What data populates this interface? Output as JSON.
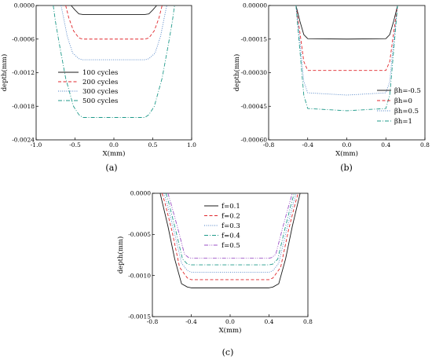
{
  "chart_data": [
    {
      "type": "line",
      "panel_label": "(a)",
      "xlabel": "X(mm)",
      "ylabel": "depth(mm)",
      "xlim": [
        -1.0,
        1.0
      ],
      "ylim": [
        -0.0024,
        0.0
      ],
      "x_ticks": [
        "-1.0",
        "-0.5",
        "0.0",
        "0.5",
        "1.0"
      ],
      "y_ticks": [
        "0.0000",
        "-0.0006",
        "-0.0012",
        "-0.0018",
        "-0.0024"
      ],
      "legend_position": "center",
      "grid": false,
      "series": [
        {
          "name": "100 cycles",
          "color": "#1a1a1a",
          "dash": "solid",
          "x": [
            -0.55,
            -0.5,
            -0.45,
            -0.4,
            0.0,
            0.4,
            0.45,
            0.5,
            0.55
          ],
          "y": [
            0.0,
            -8e-05,
            -0.00015,
            -0.00016,
            -0.00016,
            -0.00016,
            -0.00015,
            -8e-05,
            0.0
          ]
        },
        {
          "name": "200 cycles",
          "color": "#e0262b",
          "dash": "dashed",
          "x": [
            -0.62,
            -0.58,
            -0.52,
            -0.45,
            -0.4,
            0.0,
            0.4,
            0.45,
            0.52,
            0.58,
            0.62
          ],
          "y": [
            0.0,
            -0.00022,
            -0.00045,
            -0.00058,
            -0.0006,
            -0.0006,
            -0.0006,
            -0.00058,
            -0.00045,
            -0.00022,
            0.0
          ]
        },
        {
          "name": "300 cycles",
          "color": "#4a7fc4",
          "dash": "dotted",
          "x": [
            -0.68,
            -0.65,
            -0.6,
            -0.53,
            -0.45,
            -0.4,
            0.0,
            0.4,
            0.45,
            0.53,
            0.6,
            0.65,
            0.68
          ],
          "y": [
            0.0,
            -0.0002,
            -0.00055,
            -0.00085,
            -0.00095,
            -0.00097,
            -0.00097,
            -0.00097,
            -0.00095,
            -0.00085,
            -0.00055,
            -0.0002,
            0.0
          ]
        },
        {
          "name": "500 cycles",
          "color": "#1f9a8a",
          "dash": "dashdot",
          "x": [
            -0.78,
            -0.75,
            -0.7,
            -0.62,
            -0.52,
            -0.45,
            -0.4,
            0.0,
            0.4,
            0.45,
            0.52,
            0.62,
            0.7,
            0.75,
            0.78
          ],
          "y": [
            0.0,
            -0.0003,
            -0.0007,
            -0.0013,
            -0.0018,
            -0.00195,
            -0.002,
            -0.002,
            -0.002,
            -0.00195,
            -0.0018,
            -0.0013,
            -0.0007,
            -0.0003,
            0.0
          ]
        }
      ]
    },
    {
      "type": "line",
      "panel_label": "(b)",
      "xlabel": "X(mm)",
      "ylabel": "depth(mm)",
      "xlim": [
        -0.8,
        0.8
      ],
      "ylim": [
        -0.0006,
        0.0
      ],
      "x_ticks": [
        "-0.8",
        "-0.4",
        "0.0",
        "0.4",
        "0.8"
      ],
      "y_ticks": [
        "0.00000",
        "-0.00015",
        "-0.00030",
        "-0.00045",
        "-0.00060"
      ],
      "legend_position": "right",
      "grid": false,
      "series": [
        {
          "name": "βh=-0.5",
          "color": "#1a1a1a",
          "dash": "solid",
          "x": [
            -0.52,
            -0.48,
            -0.44,
            -0.4,
            0.0,
            0.4,
            0.44,
            0.48,
            0.52
          ],
          "y": [
            0.0,
            -7e-05,
            -0.00013,
            -0.000148,
            -0.00015,
            -0.000148,
            -0.00013,
            -7e-05,
            0.0
          ]
        },
        {
          "name": "βh=0",
          "color": "#e0262b",
          "dash": "dashed",
          "x": [
            -0.52,
            -0.48,
            -0.44,
            -0.4,
            0.0,
            0.4,
            0.44,
            0.48,
            0.52
          ],
          "y": [
            0.0,
            -0.00012,
            -0.00025,
            -0.00029,
            -0.00029,
            -0.00029,
            -0.00025,
            -0.00012,
            0.0
          ]
        },
        {
          "name": "βh=0.5",
          "color": "#4a7fc4",
          "dash": "dotted",
          "x": [
            -0.52,
            -0.48,
            -0.44,
            -0.4,
            0.0,
            0.4,
            0.44,
            0.48,
            0.52
          ],
          "y": [
            0.0,
            -0.00016,
            -0.00034,
            -0.00039,
            -0.0004,
            -0.00039,
            -0.00034,
            -0.00016,
            0.0
          ]
        },
        {
          "name": "βh=1",
          "color": "#1f9a8a",
          "dash": "dashdot",
          "x": [
            -0.52,
            -0.48,
            -0.44,
            -0.4,
            0.0,
            0.4,
            0.44,
            0.48,
            0.52
          ],
          "y": [
            0.0,
            -0.0002,
            -0.0004,
            -0.00046,
            -0.00047,
            -0.00046,
            -0.0004,
            -0.0002,
            0.0
          ]
        }
      ]
    },
    {
      "type": "line",
      "panel_label": "(c)",
      "xlabel": "X(mm)",
      "ylabel": "depth(mm)",
      "xlim": [
        -0.8,
        0.8
      ],
      "ylim": [
        -0.0015,
        0.0
      ],
      "x_ticks": [
        "-0.8",
        "-0.4",
        "0.0",
        "0.4",
        "0.8"
      ],
      "y_ticks": [
        "0.0000",
        "-0.0005",
        "-0.0010",
        "-0.0015"
      ],
      "legend_position": "top-right",
      "grid": false,
      "series": [
        {
          "name": "f=0.1",
          "color": "#1a1a1a",
          "dash": "solid",
          "x": [
            -0.72,
            -0.7,
            -0.64,
            -0.57,
            -0.5,
            -0.44,
            -0.4,
            0.0,
            0.4,
            0.44,
            0.5,
            0.57,
            0.64,
            0.7,
            0.72
          ],
          "y": [
            0.0,
            -0.0001,
            -0.0004,
            -0.0008,
            -0.0011,
            -0.00114,
            -0.00115,
            -0.00115,
            -0.00115,
            -0.00114,
            -0.0011,
            -0.0008,
            -0.0004,
            -0.0001,
            0.0
          ]
        },
        {
          "name": "f=0.2",
          "color": "#e0262b",
          "dash": "dashed",
          "x": [
            -0.7,
            -0.67,
            -0.6,
            -0.52,
            -0.44,
            -0.4,
            0.0,
            0.4,
            0.44,
            0.52,
            0.6,
            0.67,
            0.7
          ],
          "y": [
            0.0,
            -0.00012,
            -0.00045,
            -0.0009,
            -0.00103,
            -0.00105,
            -0.00105,
            -0.00105,
            -0.00103,
            -0.0009,
            -0.00045,
            -0.00012,
            0.0
          ]
        },
        {
          "name": "f=0.3",
          "color": "#4a7fc4",
          "dash": "dotted",
          "x": [
            -0.68,
            -0.65,
            -0.58,
            -0.5,
            -0.44,
            -0.4,
            0.0,
            0.4,
            0.44,
            0.5,
            0.58,
            0.65,
            0.68
          ],
          "y": [
            0.0,
            -0.00012,
            -0.00045,
            -0.00085,
            -0.00094,
            -0.00096,
            -0.00096,
            -0.00096,
            -0.00094,
            -0.00085,
            -0.00045,
            -0.00012,
            0.0
          ]
        },
        {
          "name": "f=0.4",
          "color": "#1f9a8a",
          "dash": "dashdot",
          "x": [
            -0.66,
            -0.63,
            -0.56,
            -0.49,
            -0.44,
            -0.4,
            0.0,
            0.4,
            0.44,
            0.49,
            0.56,
            0.63,
            0.66
          ],
          "y": [
            0.0,
            -0.00012,
            -0.00045,
            -0.0008,
            -0.00086,
            -0.00087,
            -0.00087,
            -0.00087,
            -0.00086,
            -0.0008,
            -0.00045,
            -0.00012,
            0.0
          ]
        },
        {
          "name": "f=0.5",
          "color": "#9a4fc4",
          "dash": "dashdotdot",
          "x": [
            -0.64,
            -0.61,
            -0.54,
            -0.47,
            -0.43,
            -0.4,
            0.0,
            0.4,
            0.43,
            0.47,
            0.54,
            0.61,
            0.64
          ],
          "y": [
            0.0,
            -0.00012,
            -0.00042,
            -0.00074,
            -0.00078,
            -0.00079,
            -0.00079,
            -0.00079,
            -0.00078,
            -0.00074,
            -0.00042,
            -0.00012,
            0.0
          ]
        }
      ]
    }
  ]
}
